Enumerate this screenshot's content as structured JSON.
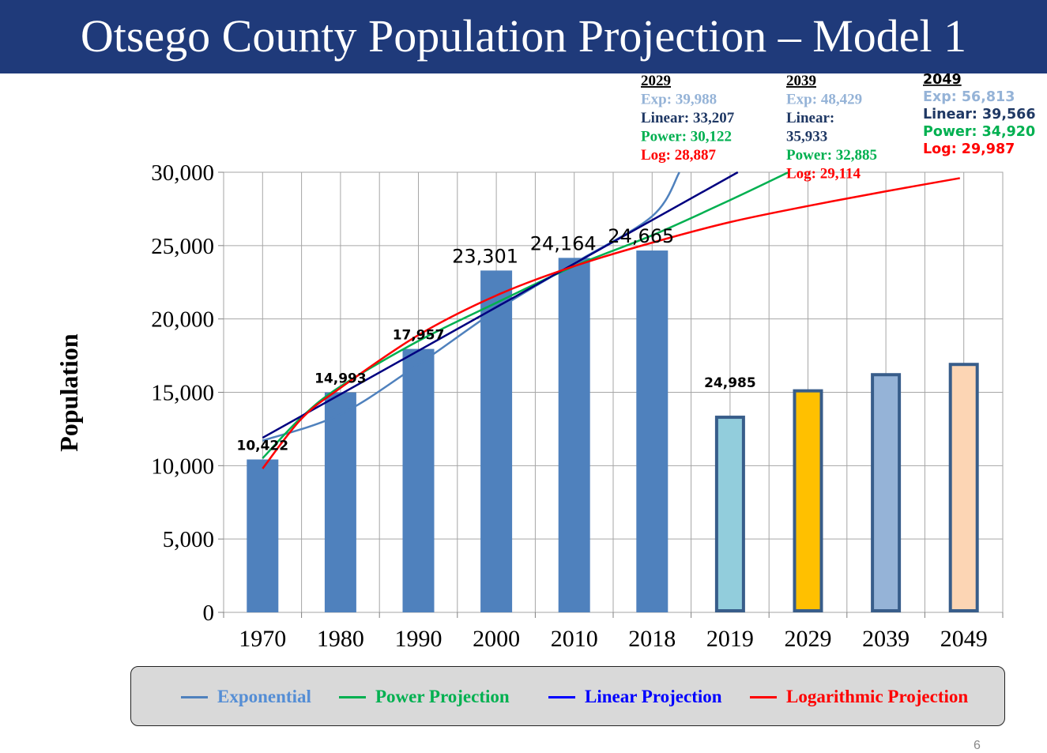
{
  "slide": {
    "title": "Otsego County Population Projection – Model 1",
    "page_number": "6"
  },
  "chart_data": {
    "type": "bar",
    "title": "Otsego County Population Projection – Model 1",
    "ylabel": "Population",
    "xlabel": "",
    "ylim": [
      0,
      30000
    ],
    "yticks": [
      0,
      5000,
      10000,
      15000,
      20000,
      25000,
      30000
    ],
    "ytick_labels": [
      "0",
      "5,000",
      "10,000",
      "15,000",
      "20,000",
      "25,000",
      "30,000"
    ],
    "grid": true,
    "categories": [
      "1970",
      "1980",
      "1990",
      "2000",
      "2010",
      "2018",
      "2019",
      "2029",
      "2039",
      "2049"
    ],
    "values": [
      10422,
      14993,
      17957,
      23301,
      24164,
      24665,
      13300,
      15100,
      16200,
      16900
    ],
    "bar_colors": [
      "#4f81bd",
      "#4f81bd",
      "#4f81bd",
      "#4f81bd",
      "#4f81bd",
      "#4f81bd",
      "#92cddc",
      "#ffc000",
      "#95b3d7",
      "#fcd5b4"
    ],
    "bar_outlined": [
      false,
      false,
      false,
      false,
      false,
      false,
      true,
      true,
      true,
      true
    ],
    "data_labels": [
      {
        "category": "1970",
        "text": "10,422",
        "style": "small"
      },
      {
        "category": "1980",
        "text": "14,993",
        "style": "small"
      },
      {
        "category": "1990",
        "text": "17,957",
        "style": "small"
      },
      {
        "category": "2000",
        "text": "23,301",
        "style": "large"
      },
      {
        "category": "2010",
        "text": "24,164",
        "style": "large"
      },
      {
        "category": "2018",
        "text": "24,665",
        "style": "large"
      },
      {
        "category": "2019",
        "text": "24,985",
        "style": "small"
      }
    ],
    "series": [
      {
        "name": "Exponential",
        "color": "#4f81bd",
        "points": [
          [
            0,
            11700
          ],
          [
            1,
            13500
          ],
          [
            2,
            16900
          ],
          [
            3,
            20600
          ],
          [
            4,
            23800
          ],
          [
            5,
            27000
          ],
          [
            5.35,
            30000
          ]
        ]
      },
      {
        "name": "Power Projection",
        "color": "#00b050",
        "points": [
          [
            0,
            10500
          ],
          [
            0.5,
            13300
          ],
          [
            1,
            15400
          ],
          [
            2,
            18500
          ],
          [
            3,
            21100
          ],
          [
            4,
            23600
          ],
          [
            5,
            25700
          ],
          [
            6,
            28100
          ],
          [
            6.75,
            30000
          ]
        ]
      },
      {
        "name": "Linear Projection",
        "color": "#000080",
        "points": [
          [
            0,
            11900
          ],
          [
            6.1,
            30000
          ]
        ]
      },
      {
        "name": "Logarithmic Projection",
        "color": "#ff0000",
        "points": [
          [
            0,
            9800
          ],
          [
            0.5,
            13200
          ],
          [
            1,
            15300
          ],
          [
            2,
            18900
          ],
          [
            3,
            21600
          ],
          [
            4,
            23600
          ],
          [
            5,
            25200
          ],
          [
            6,
            26600
          ],
          [
            7,
            27700
          ],
          [
            8,
            28700
          ],
          [
            8.95,
            29600
          ]
        ]
      }
    ],
    "annotations": [
      {
        "year": "2029",
        "items": [
          {
            "text": "Exp: 39,988",
            "series": "Exponential"
          },
          {
            "text": "Linear: 33,207",
            "series": "Linear Projection"
          },
          {
            "text": "Power: 30,122",
            "series": "Power Projection"
          },
          {
            "text": "Log: 28,887",
            "series": "Logarithmic Projection"
          }
        ]
      },
      {
        "year": "2039",
        "items": [
          {
            "text": "Exp: 48,429",
            "series": "Exponential"
          },
          {
            "text": "Linear:",
            "series": "Linear Projection"
          },
          {
            "text": "35,933",
            "series": "Linear Projection"
          },
          {
            "text": "Power: 32,885",
            "series": "Power Projection"
          },
          {
            "text": "Log: 29,114",
            "series": "Logarithmic Projection"
          }
        ]
      },
      {
        "year": "2049",
        "items": [
          {
            "text": "Exp: 56,813",
            "series": "Exponential"
          },
          {
            "text": "Linear: 39,566",
            "series": "Linear Projection"
          },
          {
            "text": "Power: 34,920",
            "series": "Power Projection"
          },
          {
            "text": "Log: 29,987",
            "series": "Logarithmic Projection"
          }
        ]
      }
    ],
    "annotation_colors": {
      "Exponential": "#95b3d7",
      "Linear Projection": "#1f3864",
      "Power Projection": "#00b050",
      "Logarithmic Projection": "#ff0000"
    },
    "legend": {
      "placement": "bottom",
      "items": [
        {
          "label": "Exponential",
          "color": "#4f81bd",
          "text_color": "#558ed5"
        },
        {
          "label": "Power Projection",
          "color": "#00b050",
          "text_color": "#00b050"
        },
        {
          "label": "Linear Projection",
          "color": "#0000ff",
          "text_color": "#0000ff"
        },
        {
          "label": "Logarithmic Projection",
          "color": "#ff0000",
          "text_color": "#ff0000"
        }
      ]
    }
  }
}
